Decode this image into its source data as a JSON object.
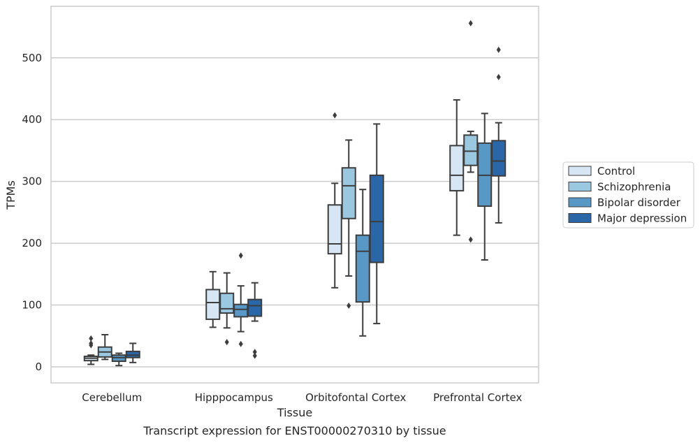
{
  "chart_data": {
    "type": "box",
    "caption": "Transcript expression for ENST00000270310 by tissue",
    "xlabel": "Tissue",
    "ylabel": "TPMs",
    "ylim": [
      -25,
      585
    ],
    "yticks": [
      0,
      100,
      200,
      300,
      400,
      500
    ],
    "grid": "horizontal",
    "legend_placement": "right",
    "categories": [
      "Cerebellum",
      "Hipppocampus",
      "Orbitofontal Cortex",
      "Prefrontal Cortex"
    ],
    "series": [
      {
        "name": "Control",
        "color": "#d6e6f4",
        "boxes": [
          {
            "whislo": 4,
            "q1": 10,
            "med": 14,
            "q3": 17,
            "whishi": 19,
            "fliers": [
              35,
              38,
              46
            ]
          },
          {
            "whislo": 64,
            "q1": 77,
            "med": 104,
            "q3": 125,
            "whishi": 154,
            "fliers": []
          },
          {
            "whislo": 128,
            "q1": 183,
            "med": 199,
            "q3": 262,
            "whishi": 297,
            "fliers": [
              407
            ]
          },
          {
            "whislo": 213,
            "q1": 285,
            "med": 310,
            "q3": 358,
            "whishi": 432,
            "fliers": []
          }
        ]
      },
      {
        "name": "Schizophrenia",
        "color": "#9ac8e0",
        "boxes": [
          {
            "whislo": 12,
            "q1": 16,
            "med": 24,
            "q3": 32,
            "whishi": 52,
            "fliers": []
          },
          {
            "whislo": 63,
            "q1": 87,
            "med": 94,
            "q3": 119,
            "whishi": 152,
            "fliers": [
              40
            ]
          },
          {
            "whislo": 147,
            "q1": 240,
            "med": 293,
            "q3": 322,
            "whishi": 367,
            "fliers": [
              99
            ]
          },
          {
            "whislo": 315,
            "q1": 326,
            "med": 349,
            "q3": 375,
            "whishi": 381,
            "fliers": [
              206,
              556
            ]
          }
        ]
      },
      {
        "name": "Bipolar disorder",
        "color": "#5898c6",
        "boxes": [
          {
            "whislo": 2,
            "q1": 9,
            "med": 15,
            "q3": 19,
            "whishi": 22,
            "fliers": []
          },
          {
            "whislo": 57,
            "q1": 81,
            "med": 93,
            "q3": 101,
            "whishi": 131,
            "fliers": [
              37,
              180
            ]
          },
          {
            "whislo": 50,
            "q1": 105,
            "med": 187,
            "q3": 213,
            "whishi": 287,
            "fliers": []
          },
          {
            "whislo": 173,
            "q1": 260,
            "med": 310,
            "q3": 362,
            "whishi": 410,
            "fliers": []
          }
        ]
      },
      {
        "name": "Major depression",
        "color": "#2967a8",
        "boxes": [
          {
            "whislo": 7,
            "q1": 15,
            "med": 19,
            "q3": 25,
            "whishi": 38,
            "fliers": []
          },
          {
            "whislo": 74,
            "q1": 82,
            "med": 99,
            "q3": 109,
            "whishi": 136,
            "fliers": [
              18,
              24
            ]
          },
          {
            "whislo": 70,
            "q1": 169,
            "med": 235,
            "q3": 310,
            "whishi": 393,
            "fliers": []
          },
          {
            "whislo": 233,
            "q1": 309,
            "med": 333,
            "q3": 366,
            "whishi": 395,
            "fliers": [
              469,
              513
            ]
          }
        ]
      }
    ]
  }
}
